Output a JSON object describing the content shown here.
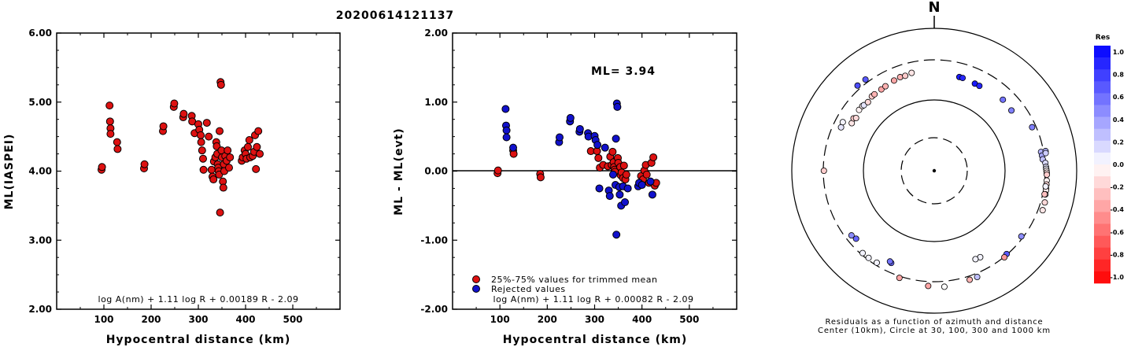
{
  "title": "20200614121137",
  "colors": {
    "accepted": "#dd1111",
    "rejected": "#1111cc",
    "axis": "#000000"
  },
  "chart_data": [
    {
      "type": "scatter",
      "ylabel": "ML(IASPEI)",
      "xlabel": "Hypocentral distance (km)",
      "xlim": [
        0,
        600
      ],
      "ylim": [
        2.0,
        6.0
      ],
      "xticks": [
        100,
        200,
        300,
        400,
        500
      ],
      "yticks": [
        "2.00",
        "3.00",
        "4.00",
        "5.00",
        "6.00"
      ],
      "formula": "log A(nm) + 1.11 log R + 0.00189 R - 2.09",
      "points": [
        [
          95,
          4.02
        ],
        [
          96,
          4.06
        ],
        [
          112,
          4.95
        ],
        [
          113,
          4.72
        ],
        [
          114,
          4.62
        ],
        [
          114,
          4.54
        ],
        [
          128,
          4.42
        ],
        [
          129,
          4.32
        ],
        [
          185,
          4.04
        ],
        [
          186,
          4.1
        ],
        [
          225,
          4.58
        ],
        [
          226,
          4.65
        ],
        [
          248,
          4.93
        ],
        [
          249,
          4.98
        ],
        [
          268,
          4.78
        ],
        [
          269,
          4.83
        ],
        [
          286,
          4.8
        ],
        [
          287,
          4.72
        ],
        [
          292,
          4.55
        ],
        [
          300,
          4.68
        ],
        [
          302,
          4.6
        ],
        [
          305,
          4.52
        ],
        [
          306,
          4.42
        ],
        [
          308,
          4.3
        ],
        [
          310,
          4.18
        ],
        [
          311,
          4.02
        ],
        [
          318,
          4.7
        ],
        [
          322,
          4.5
        ],
        [
          328,
          4.02
        ],
        [
          330,
          3.92
        ],
        [
          332,
          3.88
        ],
        [
          333,
          4.14
        ],
        [
          336,
          4.2
        ],
        [
          338,
          4.42
        ],
        [
          339,
          4.36
        ],
        [
          340,
          4.25
        ],
        [
          341,
          4.1
        ],
        [
          342,
          4.05
        ],
        [
          343,
          4.0
        ],
        [
          344,
          3.95
        ],
        [
          345,
          4.58
        ],
        [
          346,
          3.4
        ],
        [
          347,
          5.29
        ],
        [
          348,
          5.25
        ],
        [
          349,
          4.3
        ],
        [
          350,
          4.2
        ],
        [
          352,
          3.85
        ],
        [
          353,
          3.76
        ],
        [
          354,
          4.1
        ],
        [
          355,
          4.0
        ],
        [
          357,
          4.22
        ],
        [
          360,
          4.15
        ],
        [
          362,
          4.3
        ],
        [
          365,
          4.05
        ],
        [
          367,
          4.2
        ],
        [
          392,
          4.15
        ],
        [
          394,
          4.2
        ],
        [
          398,
          4.3
        ],
        [
          400,
          4.25
        ],
        [
          402,
          4.18
        ],
        [
          405,
          4.35
        ],
        [
          408,
          4.45
        ],
        [
          410,
          4.2
        ],
        [
          415,
          4.22
        ],
        [
          418,
          4.28
        ],
        [
          420,
          4.52
        ],
        [
          422,
          4.03
        ],
        [
          424,
          4.35
        ],
        [
          427,
          4.58
        ],
        [
          430,
          4.25
        ]
      ]
    },
    {
      "type": "scatter",
      "ylabel": "ML - ML(evt)",
      "xlabel": "Hypocentral distance (km)",
      "xlim": [
        0,
        600
      ],
      "ylim": [
        -2.0,
        2.0
      ],
      "xticks": [
        100,
        200,
        300,
        400,
        500
      ],
      "yticks": [
        "-2.00",
        "-1.00",
        "0.00",
        "1.00",
        "2.00"
      ],
      "reference_line": 0.0,
      "ml_label": "ML= 3.94",
      "legend": [
        "25%-75% values for trimmed mean",
        "Rejected values"
      ],
      "formula": "log A(nm) + 1.11 log R + 0.00082 R - 2.09",
      "series": [
        {
          "role": "accepted",
          "points": [
            [
              95,
              -0.03
            ],
            [
              96,
              0.01
            ],
            [
              128,
              0.3
            ],
            [
              129,
              0.25
            ],
            [
              185,
              -0.04
            ],
            [
              186,
              -0.09
            ],
            [
              292,
              0.29
            ],
            [
              305,
              0.29
            ],
            [
              308,
              0.19
            ],
            [
              311,
              0.05
            ],
            [
              318,
              0.09
            ],
            [
              328,
              0.07
            ],
            [
              333,
              0.21
            ],
            [
              336,
              0.09
            ],
            [
              338,
              0.28
            ],
            [
              340,
              0.13
            ],
            [
              341,
              0.06
            ],
            [
              342,
              0.02
            ],
            [
              343,
              -0.01
            ],
            [
              349,
              0.19
            ],
            [
              350,
              0.12
            ],
            [
              354,
              0.06
            ],
            [
              355,
              -0.06
            ],
            [
              357,
              -0.02
            ],
            [
              360,
              -0.1
            ],
            [
              362,
              0.08
            ],
            [
              365,
              -0.12
            ],
            [
              367,
              -0.05
            ],
            [
              398,
              -0.07
            ],
            [
              402,
              -0.12
            ],
            [
              405,
              0.01
            ],
            [
              408,
              0.09
            ],
            [
              410,
              -0.05
            ],
            [
              415,
              -0.17
            ],
            [
              420,
              0.12
            ],
            [
              424,
              0.2
            ],
            [
              427,
              -0.21
            ],
            [
              430,
              -0.17
            ]
          ]
        },
        {
          "role": "rejected",
          "points": [
            [
              112,
              0.9
            ],
            [
              113,
              0.66
            ],
            [
              114,
              0.59
            ],
            [
              114,
              0.49
            ],
            [
              128,
              0.34
            ],
            [
              225,
              0.42
            ],
            [
              226,
              0.49
            ],
            [
              248,
              0.72
            ],
            [
              249,
              0.77
            ],
            [
              268,
              0.57
            ],
            [
              269,
              0.61
            ],
            [
              286,
              0.55
            ],
            [
              287,
              0.5
            ],
            [
              300,
              0.51
            ],
            [
              302,
              0.45
            ],
            [
              306,
              0.38
            ],
            [
              310,
              -0.25
            ],
            [
              322,
              0.34
            ],
            [
              330,
              -0.28
            ],
            [
              332,
              -0.36
            ],
            [
              339,
              -0.05
            ],
            [
              344,
              -0.2
            ],
            [
              345,
              0.47
            ],
            [
              346,
              -0.92
            ],
            [
              347,
              0.98
            ],
            [
              348,
              0.93
            ],
            [
              352,
              -0.23
            ],
            [
              353,
              -0.34
            ],
            [
              356,
              -0.5
            ],
            [
              360,
              -0.22
            ],
            [
              364,
              -0.45
            ],
            [
              370,
              -0.25
            ],
            [
              392,
              -0.22
            ],
            [
              394,
              -0.17
            ],
            [
              400,
              -0.2
            ],
            [
              418,
              -0.15
            ],
            [
              422,
              -0.34
            ]
          ]
        }
      ]
    },
    {
      "type": "scatter",
      "subtype": "polar",
      "north_label": "N",
      "caption": [
        "Residuals as a function of azimuth and distance",
        "Center (10km), Circle at 30, 100, 300 and 1000 km"
      ],
      "rings_km": [
        30,
        100,
        300,
        1000
      ],
      "colorbar": {
        "title": "Res",
        "range": [
          -1.0,
          1.0
        ],
        "ticks": [
          "1.0",
          "0.8",
          "0.6",
          "0.4",
          "0.2",
          "0.0",
          "-0.2",
          "-0.4",
          "-0.6",
          "-0.8",
          "-1.0"
        ]
      },
      "points": [
        [
          15,
          205,
          0.9
        ],
        [
          17,
          205,
          0.85
        ],
        [
          25,
          200,
          0.9
        ],
        [
          28,
          200,
          0.85
        ],
        [
          44,
          215,
          0.55
        ],
        [
          52,
          210,
          0.5
        ],
        [
          66,
          270,
          0.5
        ],
        [
          80,
          280,
          0.3
        ],
        [
          82,
          283,
          0.35
        ],
        [
          84,
          285,
          0.25
        ],
        [
          80,
          325,
          0.3
        ],
        [
          81,
          322,
          0.2
        ],
        [
          86,
          305,
          0.15
        ],
        [
          88,
          310,
          0.1
        ],
        [
          89,
          312,
          0.05
        ],
        [
          90,
          315,
          -0.05
        ],
        [
          91,
          318,
          -0.1
        ],
        [
          92,
          320,
          -0.2
        ],
        [
          95,
          323,
          -0.05
        ],
        [
          97,
          325,
          -0.15
        ],
        [
          99,
          328,
          -0.12
        ],
        [
          100,
          330,
          -0.08
        ],
        [
          102,
          333,
          0.0
        ],
        [
          102,
          322,
          -0.25
        ],
        [
          98,
          318,
          0.05
        ],
        [
          106,
          350,
          -0.15
        ],
        [
          110,
          355,
          -0.1
        ],
        [
          127,
          285,
          0.45
        ],
        [
          139,
          295,
          0.65
        ],
        [
          141,
          305,
          -0.4
        ],
        [
          152,
          210,
          0.05
        ],
        [
          155,
          208,
          0.05
        ],
        [
          158,
          345,
          0.25
        ],
        [
          162,
          345,
          -0.3
        ],
        [
          175,
          370,
          0.0
        ],
        [
          183,
          355,
          -0.35
        ],
        [
          198,
          320,
          -0.35
        ],
        [
          205,
          233,
          0.6
        ],
        [
          206,
          228,
          0.55
        ],
        [
          212,
          280,
          0.05
        ],
        [
          217,
          285,
          0.05
        ],
        [
          221,
          285,
          0.05
        ],
        [
          229,
          245,
          0.6
        ],
        [
          232,
          255,
          0.45
        ],
        [
          270,
          295,
          -0.2
        ],
        [
          295,
          240,
          0.1
        ],
        [
          298,
          245,
          0.05
        ],
        [
          300,
          195,
          -0.1
        ],
        [
          303,
          200,
          -0.2
        ],
        [
          304,
          190,
          -0.15
        ],
        [
          309,
          203,
          -0.05
        ],
        [
          312,
          203,
          -0.05
        ],
        [
          313,
          200,
          0.1
        ],
        [
          316,
          196,
          -0.15
        ],
        [
          320,
          205,
          -0.2
        ],
        [
          322,
          205,
          -0.3
        ],
        [
          327,
          205,
          -0.35
        ],
        [
          330,
          208,
          -0.3
        ],
        [
          336,
          215,
          -0.35
        ],
        [
          340,
          220,
          -0.3
        ],
        [
          343,
          218,
          -0.2
        ],
        [
          347,
          225,
          -0.1
        ],
        [
          318,
          345,
          0.7
        ],
        [
          323,
          340,
          0.65
        ]
      ]
    }
  ]
}
